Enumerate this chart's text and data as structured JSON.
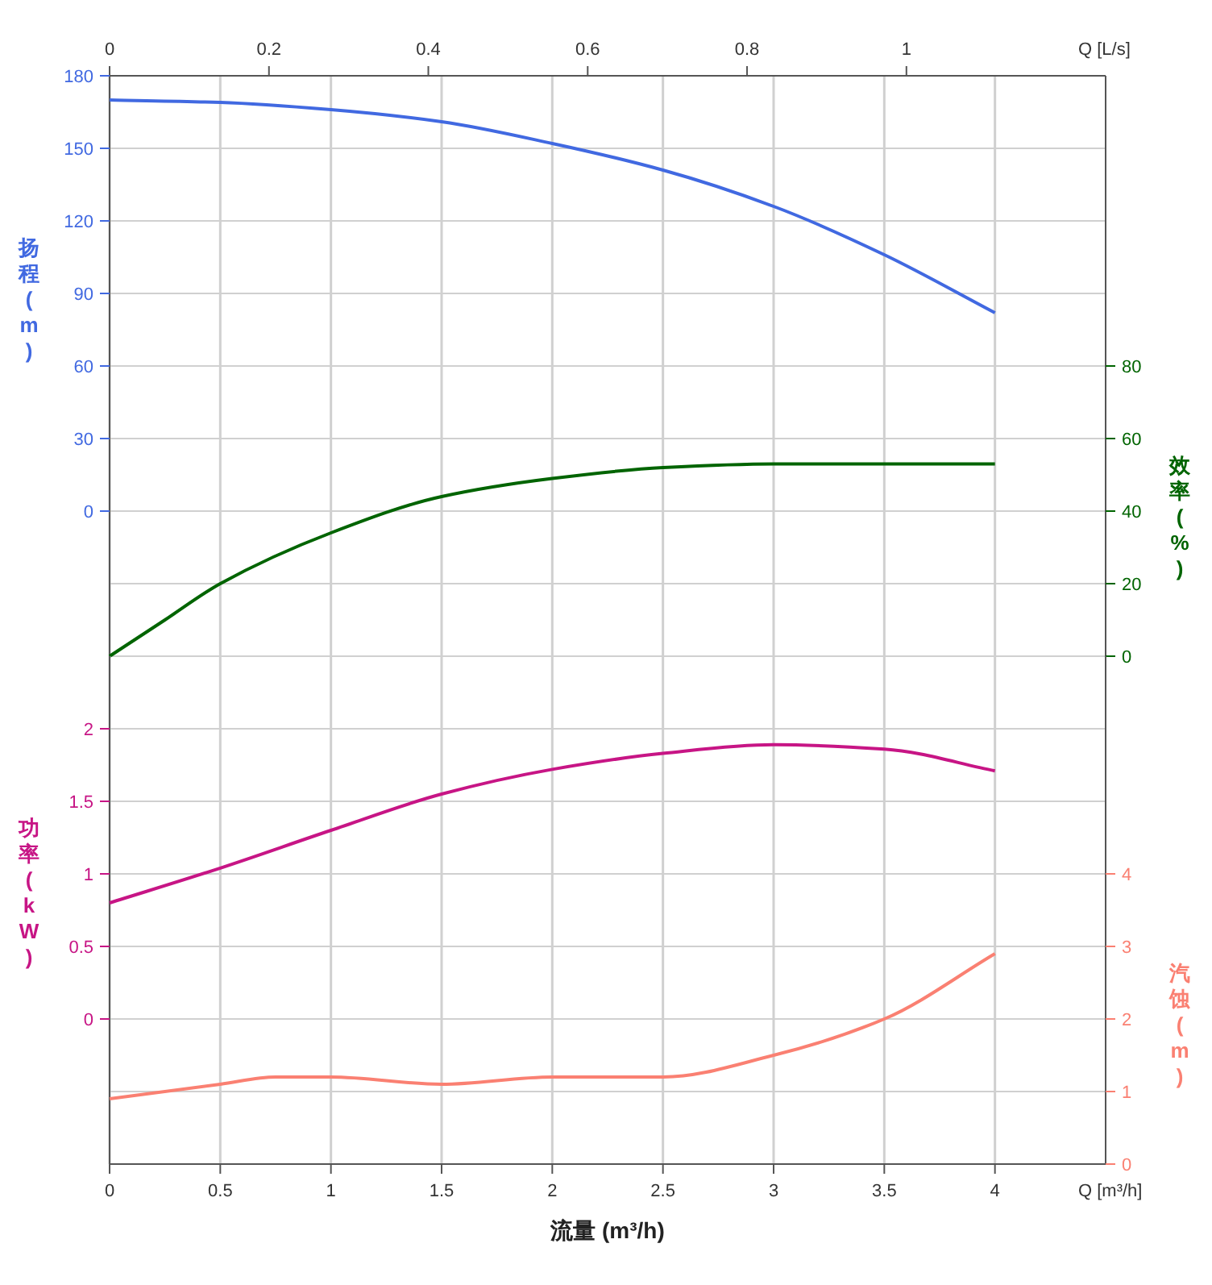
{
  "chart_data": [
    {
      "type": "line",
      "x2label": "Q [L/s]",
      "ylabel": "扬程 (m)",
      "y2label": "效率 (%)",
      "tick_labels": "y",
      "xlim": [
        0,
        4.5
      ],
      "xticks": [
        0,
        0.5,
        1,
        1.5,
        2,
        2.5,
        3,
        3.5,
        4
      ],
      "x2lim": [
        0,
        1.25
      ],
      "x2ticks": [
        0,
        0.2,
        0.4,
        0.6,
        0.8,
        1
      ],
      "ylim": [
        -60,
        180
      ],
      "yticks": [
        0,
        30,
        60,
        90,
        120,
        150,
        180
      ],
      "y2lim": [
        0,
        160
      ],
      "y2ticks": [
        0,
        20,
        40,
        60,
        80
      ],
      "grid": true,
      "series": [
        {
          "color": "#4169e1",
          "x": [
            0,
            0.5,
            1,
            1.5,
            2,
            2.5,
            3,
            3.5,
            4
          ],
          "values": [
            170,
            169,
            166,
            161,
            152,
            141,
            126,
            106,
            82
          ]
        },
        {
          "axis": "y2",
          "color": "#006400",
          "x": [
            0,
            0.25,
            0.5,
            1,
            1.5,
            2,
            2.5,
            3,
            3.5,
            4
          ],
          "values": [
            0,
            10,
            20,
            34,
            44,
            49,
            52,
            53,
            53,
            53
          ]
        }
      ]
    },
    {
      "type": "line",
      "xlabel": "流量 (m³/h)",
      "ylabel": "功率 (kW)",
      "y2label": "汽蚀 (m)",
      "annotations": [
        "Q [m³/h]"
      ],
      "xlim": [
        0,
        4.5
      ],
      "xticks": [
        0,
        0.5,
        1,
        1.5,
        2,
        2.5,
        3,
        3.5,
        4
      ],
      "ylim": [
        -1,
        2.5
      ],
      "yticks": [
        0,
        0.5,
        1,
        1.5,
        2
      ],
      "y2lim": [
        0,
        7
      ],
      "y2ticks": [
        0,
        1,
        2,
        3,
        4
      ],
      "grid": true,
      "series": [
        {
          "color": "#c71585",
          "x": [
            0,
            0.5,
            1,
            1.5,
            2,
            2.5,
            3,
            3.5,
            4
          ],
          "values": [
            0.8,
            1.04,
            1.3,
            1.55,
            1.72,
            1.83,
            1.89,
            1.86,
            1.71
          ]
        },
        {
          "axis": "y2",
          "color": "#fa8072",
          "x": [
            0,
            0.5,
            0.75,
            1,
            1.5,
            2,
            2.5,
            3,
            3.5,
            4
          ],
          "values": [
            0.9,
            1.1,
            1.2,
            1.2,
            1.1,
            1.2,
            1.2,
            1.5,
            2,
            2.9
          ]
        }
      ]
    }
  ]
}
